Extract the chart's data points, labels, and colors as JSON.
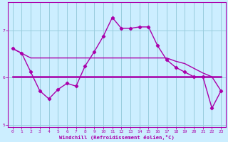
{
  "xlabel": "Windchill (Refroidissement éolien,°C)",
  "bg_color": "#cceeff",
  "grid_color": "#99ccdd",
  "line_color": "#aa00aa",
  "hours": [
    0,
    1,
    2,
    3,
    4,
    5,
    6,
    7,
    8,
    9,
    10,
    11,
    12,
    13,
    14,
    15,
    16,
    17,
    18,
    19,
    20,
    21,
    22,
    23
  ],
  "line1": [
    6.62,
    6.52,
    6.42,
    6.42,
    6.42,
    6.42,
    6.42,
    6.42,
    6.42,
    6.42,
    6.42,
    6.42,
    6.42,
    6.42,
    6.42,
    6.42,
    6.42,
    6.42,
    6.35,
    6.3,
    6.2,
    6.1,
    6.02,
    5.72
  ],
  "line2": [
    6.02,
    6.02,
    6.02,
    6.02,
    6.02,
    6.02,
    6.02,
    6.02,
    6.02,
    6.02,
    6.02,
    6.02,
    6.02,
    6.02,
    6.02,
    6.02,
    6.02,
    6.02,
    6.02,
    6.02,
    6.02,
    6.02,
    6.02,
    6.02
  ],
  "line3": [
    6.62,
    6.52,
    6.12,
    5.72,
    5.55,
    5.75,
    5.88,
    5.82,
    6.25,
    6.55,
    6.88,
    7.28,
    7.05,
    7.05,
    7.08,
    7.08,
    6.68,
    6.38,
    6.22,
    6.12,
    6.02,
    6.02,
    5.35,
    5.72
  ],
  "ylim": [
    4.95,
    7.6
  ],
  "yticks": [
    5,
    6,
    7
  ],
  "xticks": [
    0,
    1,
    2,
    3,
    4,
    5,
    6,
    7,
    8,
    9,
    10,
    11,
    12,
    13,
    14,
    15,
    16,
    17,
    18,
    19,
    20,
    21,
    22,
    23
  ]
}
